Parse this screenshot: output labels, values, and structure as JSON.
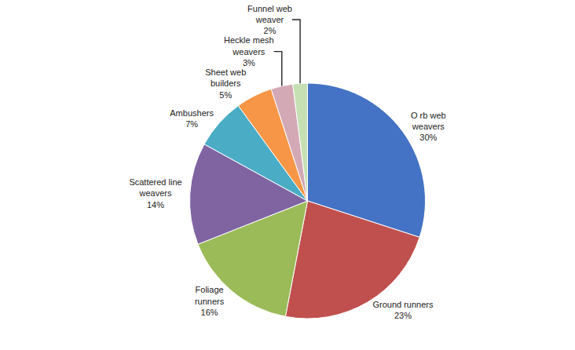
{
  "chart_data": {
    "type": "pie",
    "categories": [
      "O rb web\nweavers\n30%",
      "Ground runners\n23%",
      "Foliage\nrunners\n16%",
      "Scattered line\nweavers\n14%",
      "Ambushers\n7%",
      "Sheet web\nbuilders\n5%",
      "Heckle mesh\nweavers\n3%",
      "Funnel web\nweaver\n2%"
    ],
    "values": [
      30,
      23,
      16,
      14,
      7,
      5,
      3,
      2
    ],
    "colors": [
      "#4472C4",
      "#C0504D",
      "#9BBB59",
      "#8064A2",
      "#4BACC6",
      "#F79646",
      "#D3A9B5",
      "#C6E0B4"
    ],
    "legend": false
  }
}
